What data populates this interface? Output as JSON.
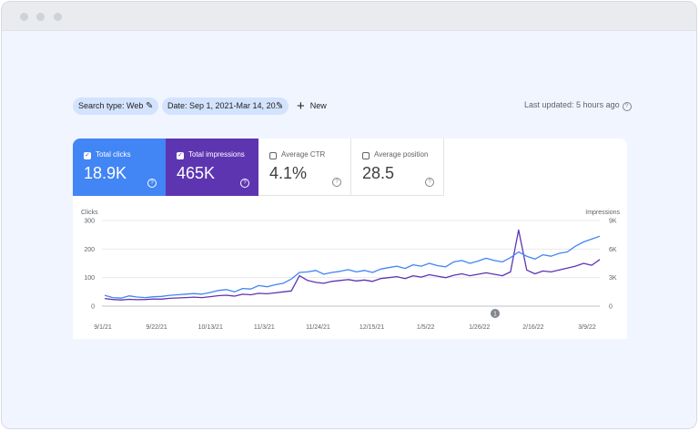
{
  "filters": {
    "search_type": "Search type: Web",
    "date": "Date: Sep 1, 2021-Mar 14, 20...",
    "new_label": "New",
    "last_updated": "Last updated: 5 hours ago"
  },
  "metrics": [
    {
      "label": "Total clicks",
      "value": "18.9K",
      "checked": true,
      "color": "#4285f4"
    },
    {
      "label": "Total impressions",
      "value": "465K",
      "checked": true,
      "color": "#5e35b1"
    },
    {
      "label": "Average CTR",
      "value": "4.1%",
      "checked": false
    },
    {
      "label": "Average position",
      "value": "28.5",
      "checked": false
    }
  ],
  "colors": {
    "clicks": "#4285f4",
    "impressions": "#5e35b1",
    "chip": "#d3e3fd"
  },
  "icons": [
    "pencil-icon",
    "plus-icon",
    "help-icon",
    "checkbox-icon",
    "annotation-marker-icon"
  ],
  "chart_data": {
    "type": "line",
    "ylabel": "Clicks",
    "y2label": "Impressions",
    "ylim": [
      0,
      300
    ],
    "y2lim": [
      0,
      9000
    ],
    "y_ticks": [
      "300",
      "200",
      "100",
      "0"
    ],
    "y2_ticks": [
      "9K",
      "6K",
      "3K",
      "0"
    ],
    "x_ticks": [
      "9/1/21",
      "9/22/21",
      "10/13/21",
      "11/3/21",
      "11/24/21",
      "12/15/21",
      "1/5/22",
      "1/26/22",
      "2/16/22",
      "3/9/22"
    ],
    "annotation": "1",
    "grid": true,
    "series": [
      {
        "name": "Total clicks",
        "axis": "left",
        "values": [
          38,
          30,
          28,
          36,
          32,
          30,
          33,
          34,
          38,
          40,
          42,
          44,
          42,
          48,
          55,
          58,
          50,
          62,
          60,
          72,
          68,
          75,
          80,
          95,
          118,
          120,
          125,
          112,
          118,
          122,
          128,
          120,
          125,
          118,
          130,
          135,
          140,
          132,
          145,
          140,
          150,
          142,
          138,
          155,
          160,
          150,
          158,
          168,
          160,
          155,
          170,
          190,
          175,
          165,
          180,
          175,
          185,
          190,
          210,
          225,
          235,
          245
        ]
      },
      {
        "name": "Total impressions",
        "axis": "right",
        "values": [
          800,
          700,
          650,
          720,
          680,
          700,
          760,
          740,
          820,
          860,
          900,
          950,
          900,
          1000,
          1100,
          1150,
          1050,
          1250,
          1200,
          1350,
          1300,
          1400,
          1500,
          1600,
          3200,
          2700,
          2500,
          2400,
          2600,
          2700,
          2800,
          2650,
          2750,
          2600,
          2900,
          3000,
          3100,
          2900,
          3200,
          3050,
          3300,
          3150,
          3000,
          3250,
          3400,
          3200,
          3350,
          3500,
          3350,
          3200,
          3600,
          8000,
          3800,
          3400,
          3700,
          3600,
          3800,
          4000,
          4200,
          4500,
          4300,
          4900
        ]
      }
    ]
  }
}
